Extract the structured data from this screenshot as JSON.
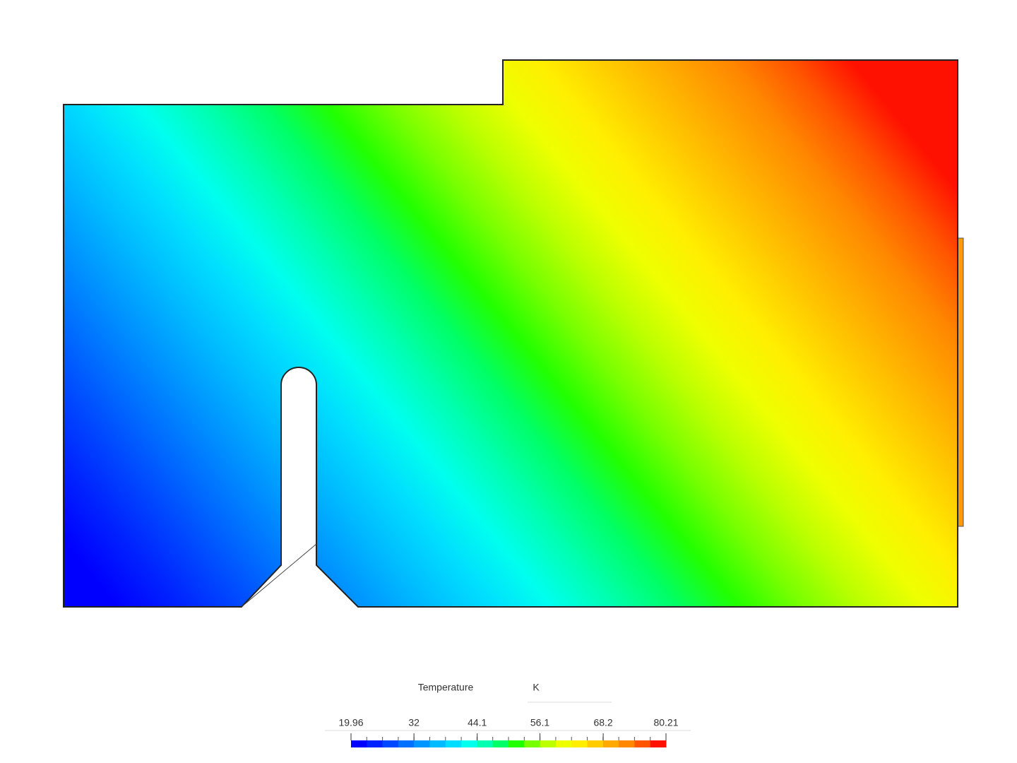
{
  "chart_data": {
    "type": "contour",
    "title": "Temperature",
    "unit": "K",
    "colorbar": {
      "lim": [
        19.96,
        80.21
      ],
      "ticks": [
        19.96,
        32,
        44.1,
        56.1,
        68.2,
        80.21
      ],
      "colors": [
        "#0000ff",
        "#0022ff",
        "#0048ff",
        "#0070ff",
        "#0096ff",
        "#00bbff",
        "#00ddff",
        "#00ffee",
        "#00ffb0",
        "#00ff66",
        "#22ff00",
        "#77ff00",
        "#bbff00",
        "#eeff00",
        "#ffee00",
        "#ffcc00",
        "#ffaa00",
        "#ff8800",
        "#ff5500",
        "#ff1100"
      ]
    }
  }
}
